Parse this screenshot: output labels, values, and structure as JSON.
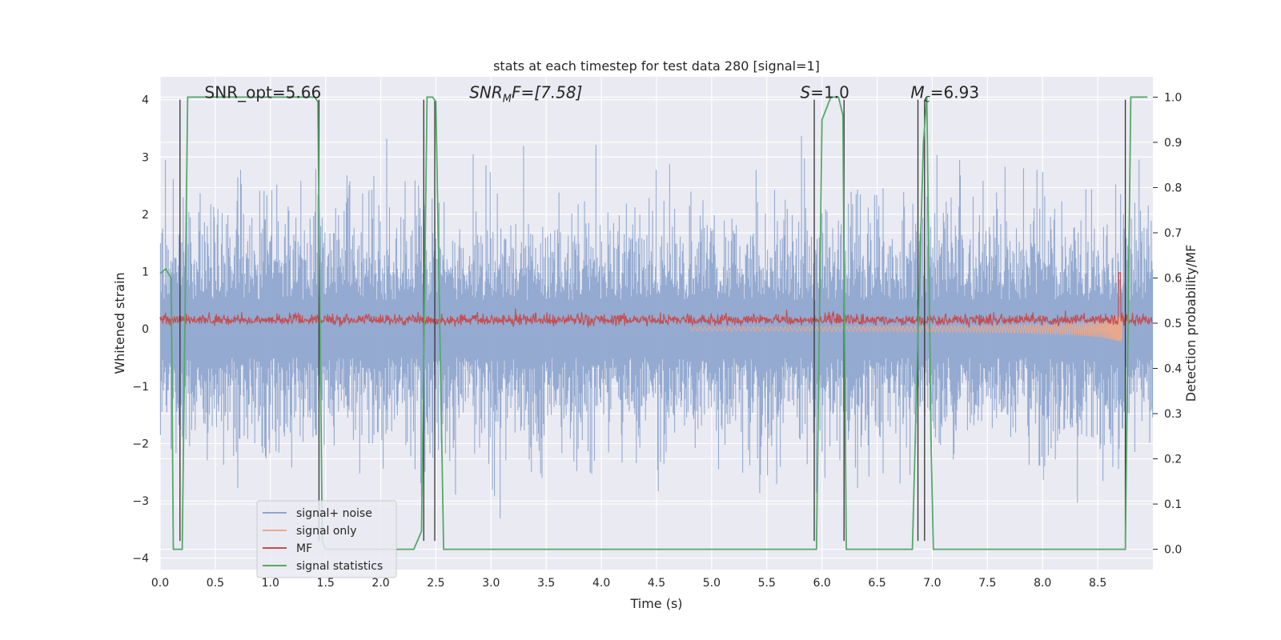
{
  "chart_data": {
    "type": "line",
    "title": "stats at each timestep for test data 280 [signal=1]",
    "xlabel": "Time (s)",
    "ylabel_left": "Whitened strain",
    "ylabel_right": "Detection probability/MF",
    "xlim": [
      0.0,
      9.0
    ],
    "ylim_left": [
      -4.2,
      4.4
    ],
    "ylim_right": [
      -0.045,
      1.045
    ],
    "x_ticks": [
      "0.0",
      "0.5",
      "1.0",
      "1.5",
      "2.0",
      "2.5",
      "3.0",
      "3.5",
      "4.0",
      "4.5",
      "5.0",
      "5.5",
      "6.0",
      "6.5",
      "7.0",
      "7.5",
      "8.0",
      "8.5"
    ],
    "y_left_ticks": [
      "−4",
      "−3",
      "−2",
      "−1",
      "0",
      "1",
      "2",
      "3",
      "4"
    ],
    "y_right_ticks": [
      "0.0",
      "0.1",
      "0.2",
      "0.3",
      "0.4",
      "0.5",
      "0.6",
      "0.7",
      "0.8",
      "0.9",
      "1.0"
    ],
    "grid": true,
    "legend_position": "lower-left",
    "annotations": [
      {
        "text": "SNR_opt=5.66",
        "x": 0.2,
        "y": 4.0
      },
      {
        "text": "SNR_MF=[7.58]",
        "x": 2.6,
        "y": 4.0
      },
      {
        "text": "S=1.0",
        "x": 5.6,
        "y": 4.0
      },
      {
        "text": "M_c=6.93",
        "x": 6.6,
        "y": 4.0
      }
    ],
    "series": [
      {
        "name": "signal+ noise",
        "color": "#8fa6cf",
        "axis": "left"
      },
      {
        "name": "signal only",
        "color": "#e8a88e",
        "axis": "left"
      },
      {
        "name": "MF",
        "color": "#c44e52",
        "axis": "left"
      },
      {
        "name": "signal statistics",
        "color": "#55a868",
        "axis": "right",
        "x": [
          0.0,
          0.05,
          0.1,
          0.12,
          0.18,
          0.2,
          0.25,
          0.3,
          1.4,
          1.43,
          1.47,
          1.5,
          2.3,
          2.37,
          2.42,
          2.47,
          2.5,
          2.57,
          5.95,
          6.0,
          6.08,
          6.15,
          6.19,
          6.22,
          6.25,
          6.82,
          6.87,
          6.92,
          6.95,
          6.99,
          7.01,
          8.75,
          8.8,
          8.85,
          8.95
        ],
        "y": [
          0.61,
          0.62,
          0.6,
          0.0,
          0.0,
          0.0,
          1.0,
          1.0,
          1.0,
          0.99,
          0.02,
          0.0,
          0.0,
          0.04,
          1.0,
          1.0,
          0.99,
          0.0,
          0.0,
          0.95,
          1.0,
          1.0,
          0.96,
          0.0,
          0.0,
          0.0,
          0.47,
          0.9,
          1.0,
          0.22,
          0.0,
          0.0,
          1.0,
          1.0,
          1.0
        ]
      },
      {
        "name": "peak markers",
        "color": "#333333",
        "axis": "left",
        "kind": "vlines",
        "x": [
          0.18,
          1.44,
          2.39,
          2.49,
          5.93,
          6.2,
          6.87,
          6.93,
          8.75
        ],
        "y_top": 4.0,
        "y_bottom": -3.7
      }
    ]
  },
  "legend": {
    "entries": [
      "signal+ noise",
      "signal only",
      "MF",
      "signal statistics"
    ]
  }
}
